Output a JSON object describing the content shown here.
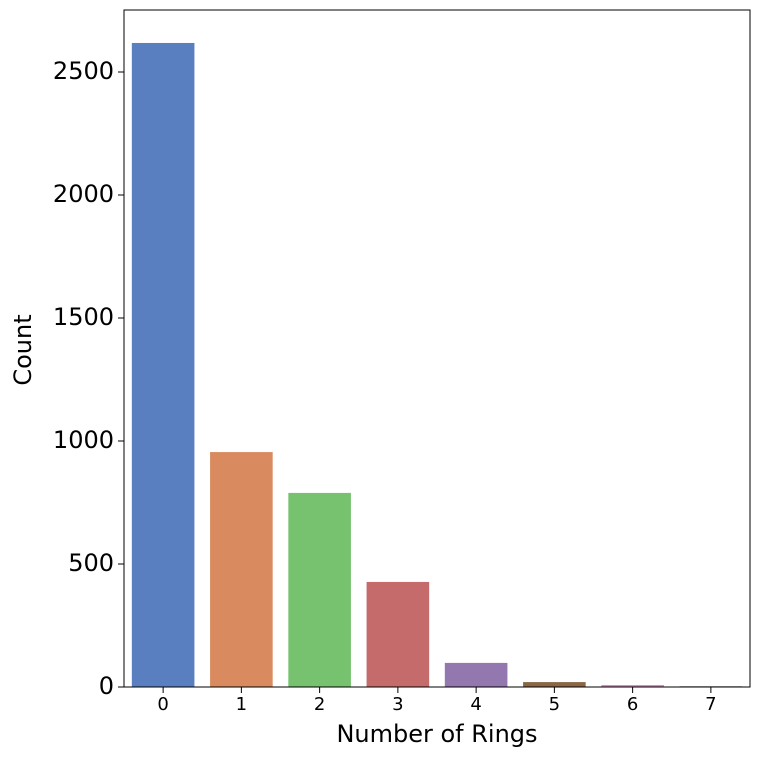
{
  "chart_data": {
    "type": "bar",
    "x_label": "Number of Rings",
    "y_label": "Count",
    "categories": [
      "0",
      "1",
      "2",
      "3",
      "4",
      "5",
      "6",
      "7"
    ],
    "values": [
      2618,
      955,
      789,
      427,
      98,
      20,
      8,
      3
    ],
    "colors": [
      "#5a7fc1",
      "#d98b5f",
      "#77c26f",
      "#c66b6b",
      "#9378b0",
      "#8b6646",
      "#d68bc1",
      "#7f7f7f"
    ],
    "ylim": [
      0,
      2752
    ],
    "yticks": [
      0,
      500,
      1000,
      1500,
      2000,
      2500
    ],
    "grid": false
  }
}
